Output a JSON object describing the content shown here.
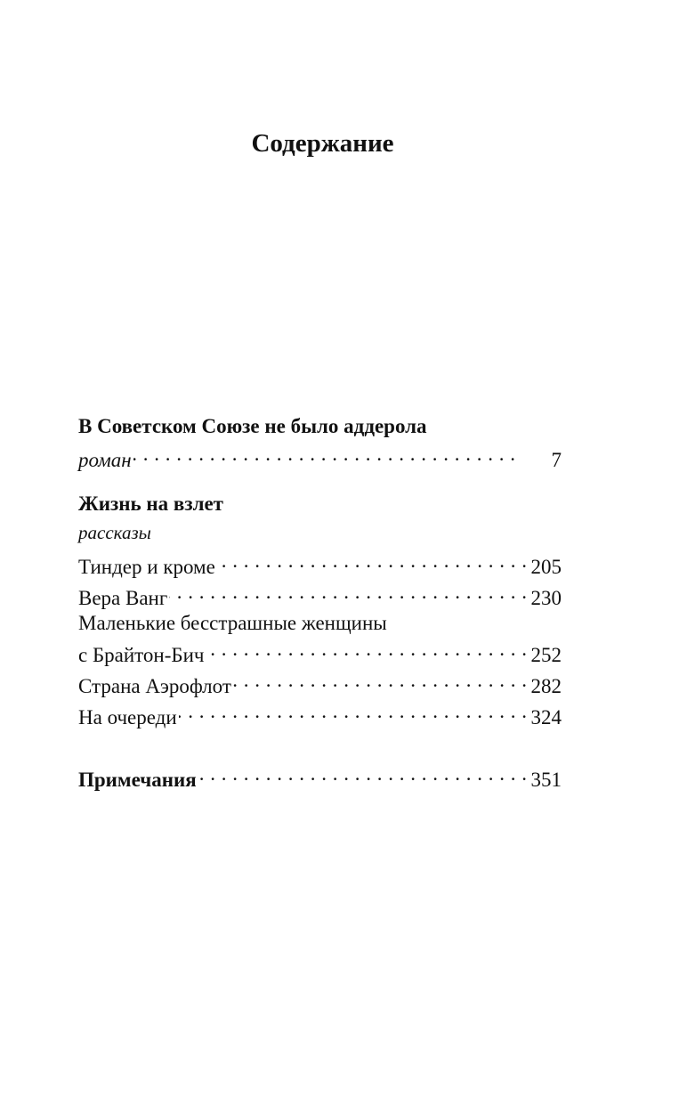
{
  "title": "Содержание",
  "sections": [
    {
      "heading": "В Советском Союзе не было аддерола",
      "subtitle": "роман",
      "page": "7"
    },
    {
      "heading": "Жизнь на взлет",
      "subtitle": "рассказы",
      "entries": [
        {
          "title": "Тиндер и кроме",
          "page": "205"
        },
        {
          "title": "Вера Ванг",
          "page": "230"
        },
        {
          "title_line1": "Маленькие бесстрашные женщины",
          "title": "с Брайтон-Бич",
          "page": "252"
        },
        {
          "title": "Страна Аэрофлот",
          "page": "282"
        },
        {
          "title": "На очереди",
          "page": "324"
        }
      ]
    },
    {
      "heading": "Примечания",
      "page": "351"
    }
  ]
}
